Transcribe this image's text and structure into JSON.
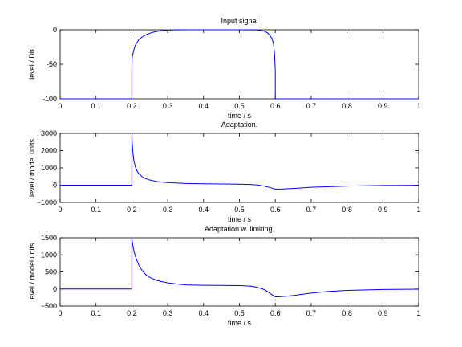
{
  "chart_data": [
    {
      "type": "line",
      "title": "Input signal",
      "xlabel": "time / s",
      "ylabel": "level / Db",
      "xlim": [
        0,
        1
      ],
      "ylim": [
        -100,
        0
      ],
      "xticks": [
        0,
        0.1,
        0.2,
        0.3,
        0.4,
        0.5,
        0.6,
        0.7,
        0.8,
        0.9,
        1
      ],
      "xtick_labels": [
        "0",
        "0.1",
        "0.2",
        "0.3",
        "0.4",
        "0.5",
        "0.6",
        "0.7",
        "0.8",
        "0.9",
        "1"
      ],
      "yticks": [
        -100,
        -50,
        0
      ],
      "ytick_labels": [
        "-100",
        "-50",
        "0"
      ],
      "grid": false,
      "color": "#0000ff",
      "series": [
        {
          "x": [
            0,
            0.2,
            0.2,
            0.201,
            0.205,
            0.21,
            0.22,
            0.23,
            0.24,
            0.25,
            0.26,
            0.28,
            0.3,
            0.32,
            0.35,
            0.4,
            0.5,
            0.55,
            0.57,
            0.58,
            0.59,
            0.595,
            0.598,
            0.6,
            0.6,
            1.0
          ],
          "y": [
            -100,
            -100,
            -55,
            -40,
            -30,
            -22,
            -14,
            -10,
            -7,
            -5,
            -3.5,
            -1.5,
            -0.5,
            -0.2,
            0,
            0,
            0,
            -0.3,
            -2,
            -5,
            -12,
            -20,
            -35,
            -60,
            -100,
            -100
          ]
        }
      ]
    },
    {
      "type": "line",
      "title": "Adaptation.",
      "xlabel": "time / s",
      "ylabel": "level / model units",
      "xlim": [
        0,
        1
      ],
      "ylim": [
        -1000,
        3000
      ],
      "xticks": [
        0,
        0.1,
        0.2,
        0.3,
        0.4,
        0.5,
        0.6,
        0.7,
        0.8,
        0.9,
        1
      ],
      "xtick_labels": [
        "0",
        "0.1",
        "0.2",
        "0.3",
        "0.4",
        "0.5",
        "0.6",
        "0.7",
        "0.8",
        "0.9",
        "1"
      ],
      "yticks": [
        -1000,
        0,
        1000,
        2000,
        3000
      ],
      "ytick_labels": [
        "−1000",
        "0",
        "1000",
        "2000",
        "3000"
      ],
      "grid": false,
      "color": "#0000ff",
      "series": [
        {
          "x": [
            0,
            0.2,
            0.2,
            0.201,
            0.203,
            0.205,
            0.21,
            0.215,
            0.22,
            0.23,
            0.24,
            0.25,
            0.27,
            0.3,
            0.35,
            0.4,
            0.45,
            0.5,
            0.53,
            0.55,
            0.57,
            0.59,
            0.6,
            0.62,
            0.65,
            0.7,
            0.8,
            0.9,
            1.0
          ],
          "y": [
            0,
            0,
            2900,
            2400,
            1900,
            1500,
            1050,
            800,
            650,
            470,
            370,
            300,
            210,
            150,
            100,
            80,
            70,
            60,
            40,
            10,
            -60,
            -160,
            -230,
            -220,
            -190,
            -120,
            -50,
            -20,
            -5
          ]
        }
      ]
    },
    {
      "type": "line",
      "title": "Adaptation w. limiting.",
      "xlabel": "time / s",
      "ylabel": "level / model units",
      "xlim": [
        0,
        1
      ],
      "ylim": [
        -500,
        1500
      ],
      "xticks": [
        0,
        0.1,
        0.2,
        0.3,
        0.4,
        0.5,
        0.6,
        0.7,
        0.8,
        0.9,
        1
      ],
      "xtick_labels": [
        "0",
        "0.1",
        "0.2",
        "0.3",
        "0.4",
        "0.5",
        "0.6",
        "0.7",
        "0.8",
        "0.9",
        "1"
      ],
      "yticks": [
        -500,
        0,
        500,
        1000,
        1500
      ],
      "ytick_labels": [
        "−500",
        "0",
        "500",
        "1000",
        "1500"
      ],
      "grid": false,
      "color": "#0000ff",
      "series": [
        {
          "x": [
            0,
            0.2,
            0.2,
            0.205,
            0.21,
            0.22,
            0.23,
            0.24,
            0.25,
            0.27,
            0.3,
            0.33,
            0.35,
            0.4,
            0.45,
            0.5,
            0.53,
            0.55,
            0.57,
            0.59,
            0.6,
            0.61,
            0.62,
            0.65,
            0.7,
            0.75,
            0.8,
            0.9,
            1.0
          ],
          "y": [
            0,
            0,
            1450,
            1150,
            950,
            680,
            520,
            410,
            340,
            250,
            180,
            140,
            120,
            110,
            105,
            100,
            85,
            50,
            -20,
            -160,
            -230,
            -230,
            -220,
            -190,
            -120,
            -70,
            -40,
            -15,
            -5
          ]
        }
      ]
    }
  ]
}
